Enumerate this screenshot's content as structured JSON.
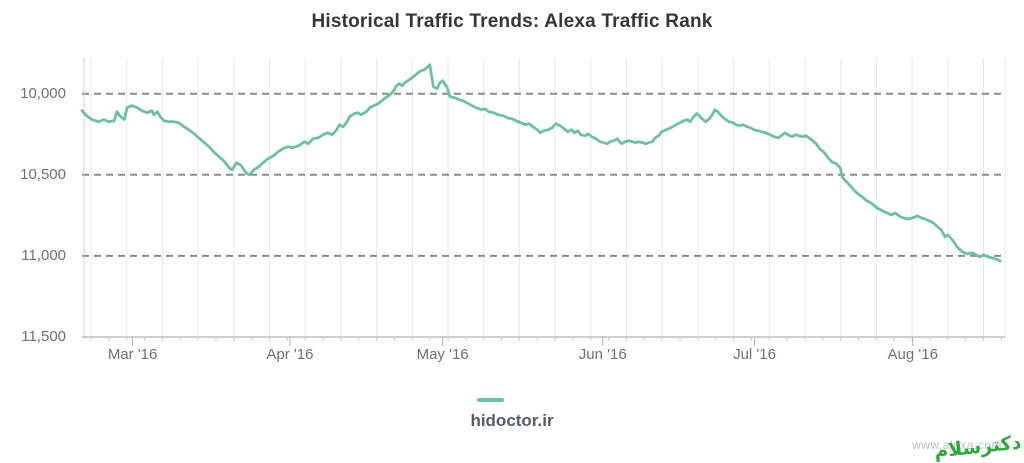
{
  "title": "Historical Traffic Trends: Alexa Traffic Rank",
  "legend": {
    "label": "hidoctor.ir"
  },
  "watermark": {
    "url_text": "www.alexa.com",
    "logo_text": "دکترسلام"
  },
  "colors": {
    "line": "#6fc19e",
    "dashed_grid": "#8c8c8c",
    "vertical_grid": "#e6e9ec",
    "axis": "#b9c0c6",
    "watermark_green": "#2ea83d"
  },
  "chart_data": {
    "type": "line",
    "title": "Historical Traffic Trends: Alexa Traffic Rank",
    "xlabel": "",
    "ylabel": "Alexa Traffic Rank",
    "grid": "weekly vertical solid, dashed horizontal at ticks",
    "legend_position": "bottom-center",
    "y_axis": {
      "inverted": true,
      "min": 9780,
      "max": 11500,
      "ticks": [
        10000,
        10500,
        11000,
        11500
      ],
      "grid_ticks": [
        10000,
        10500,
        11000
      ],
      "tick_format": "#,###"
    },
    "x_axis": {
      "labels": [
        "Mar '16",
        "Apr '16",
        "May '16",
        "Jun '16",
        "Jul '16",
        "Aug '16"
      ],
      "positions": [
        0.055,
        0.226,
        0.392,
        0.566,
        0.731,
        0.903
      ]
    },
    "series": [
      {
        "name": "hidoctor.ir",
        "color": "#6fc19e",
        "points": [
          [
            0.0,
            10105
          ],
          [
            0.005,
            10136
          ],
          [
            0.011,
            10160
          ],
          [
            0.018,
            10173
          ],
          [
            0.024,
            10160
          ],
          [
            0.029,
            10173
          ],
          [
            0.035,
            10167
          ],
          [
            0.038,
            10111
          ],
          [
            0.041,
            10136
          ],
          [
            0.046,
            10160
          ],
          [
            0.049,
            10086
          ],
          [
            0.054,
            10074
          ],
          [
            0.06,
            10086
          ],
          [
            0.065,
            10105
          ],
          [
            0.071,
            10117
          ],
          [
            0.076,
            10105
          ],
          [
            0.078,
            10130
          ],
          [
            0.082,
            10111
          ],
          [
            0.085,
            10142
          ],
          [
            0.089,
            10167
          ],
          [
            0.095,
            10173
          ],
          [
            0.1,
            10173
          ],
          [
            0.105,
            10179
          ],
          [
            0.111,
            10204
          ],
          [
            0.116,
            10222
          ],
          [
            0.122,
            10247
          ],
          [
            0.127,
            10272
          ],
          [
            0.133,
            10302
          ],
          [
            0.138,
            10327
          ],
          [
            0.143,
            10358
          ],
          [
            0.149,
            10389
          ],
          [
            0.154,
            10414
          ],
          [
            0.16,
            10457
          ],
          [
            0.163,
            10469
          ],
          [
            0.168,
            10426
          ],
          [
            0.173,
            10444
          ],
          [
            0.178,
            10488
          ],
          [
            0.182,
            10500
          ],
          [
            0.187,
            10469
          ],
          [
            0.192,
            10451
          ],
          [
            0.198,
            10420
          ],
          [
            0.202,
            10401
          ],
          [
            0.208,
            10383
          ],
          [
            0.213,
            10358
          ],
          [
            0.218,
            10340
          ],
          [
            0.224,
            10327
          ],
          [
            0.229,
            10333
          ],
          [
            0.235,
            10321
          ],
          [
            0.237,
            10315
          ],
          [
            0.242,
            10296
          ],
          [
            0.246,
            10309
          ],
          [
            0.251,
            10278
          ],
          [
            0.257,
            10272
          ],
          [
            0.262,
            10253
          ],
          [
            0.267,
            10241
          ],
          [
            0.272,
            10253
          ],
          [
            0.276,
            10228
          ],
          [
            0.28,
            10191
          ],
          [
            0.284,
            10204
          ],
          [
            0.288,
            10173
          ],
          [
            0.291,
            10142
          ],
          [
            0.296,
            10123
          ],
          [
            0.3,
            10117
          ],
          [
            0.303,
            10130
          ],
          [
            0.309,
            10111
          ],
          [
            0.313,
            10086
          ],
          [
            0.317,
            10074
          ],
          [
            0.322,
            10062
          ],
          [
            0.326,
            10043
          ],
          [
            0.33,
            10025
          ],
          [
            0.335,
            10006
          ],
          [
            0.339,
            9981
          ],
          [
            0.341,
            9957
          ],
          [
            0.345,
            9938
          ],
          [
            0.348,
            9951
          ],
          [
            0.351,
            9932
          ],
          [
            0.354,
            9920
          ],
          [
            0.359,
            9901
          ],
          [
            0.363,
            9883
          ],
          [
            0.367,
            9864
          ],
          [
            0.372,
            9852
          ],
          [
            0.375,
            9840
          ],
          [
            0.378,
            9821
          ],
          [
            0.382,
            9957
          ],
          [
            0.386,
            9969
          ],
          [
            0.389,
            9932
          ],
          [
            0.392,
            9920
          ],
          [
            0.397,
            9963
          ],
          [
            0.4,
            10019
          ],
          [
            0.405,
            10025
          ],
          [
            0.41,
            10037
          ],
          [
            0.414,
            10043
          ],
          [
            0.42,
            10062
          ],
          [
            0.424,
            10074
          ],
          [
            0.428,
            10086
          ],
          [
            0.434,
            10099
          ],
          [
            0.438,
            10093
          ],
          [
            0.442,
            10111
          ],
          [
            0.448,
            10117
          ],
          [
            0.452,
            10130
          ],
          [
            0.458,
            10136
          ],
          [
            0.462,
            10148
          ],
          [
            0.467,
            10154
          ],
          [
            0.472,
            10167
          ],
          [
            0.477,
            10179
          ],
          [
            0.482,
            10191
          ],
          [
            0.486,
            10185
          ],
          [
            0.49,
            10204
          ],
          [
            0.495,
            10222
          ],
          [
            0.498,
            10241
          ],
          [
            0.502,
            10228
          ],
          [
            0.507,
            10222
          ],
          [
            0.511,
            10210
          ],
          [
            0.515,
            10185
          ],
          [
            0.52,
            10198
          ],
          [
            0.524,
            10216
          ],
          [
            0.528,
            10235
          ],
          [
            0.532,
            10222
          ],
          [
            0.535,
            10241
          ],
          [
            0.539,
            10228
          ],
          [
            0.542,
            10253
          ],
          [
            0.547,
            10259
          ],
          [
            0.55,
            10247
          ],
          [
            0.554,
            10265
          ],
          [
            0.559,
            10278
          ],
          [
            0.563,
            10296
          ],
          [
            0.567,
            10302
          ],
          [
            0.571,
            10309
          ],
          [
            0.574,
            10296
          ],
          [
            0.578,
            10290
          ],
          [
            0.582,
            10278
          ],
          [
            0.584,
            10296
          ],
          [
            0.587,
            10309
          ],
          [
            0.59,
            10296
          ],
          [
            0.595,
            10290
          ],
          [
            0.598,
            10296
          ],
          [
            0.602,
            10302
          ],
          [
            0.605,
            10296
          ],
          [
            0.61,
            10302
          ],
          [
            0.613,
            10309
          ],
          [
            0.616,
            10302
          ],
          [
            0.62,
            10296
          ],
          [
            0.623,
            10272
          ],
          [
            0.627,
            10259
          ],
          [
            0.63,
            10235
          ],
          [
            0.635,
            10222
          ],
          [
            0.638,
            10216
          ],
          [
            0.642,
            10204
          ],
          [
            0.646,
            10191
          ],
          [
            0.65,
            10179
          ],
          [
            0.654,
            10167
          ],
          [
            0.658,
            10160
          ],
          [
            0.661,
            10173
          ],
          [
            0.665,
            10142
          ],
          [
            0.668,
            10123
          ],
          [
            0.672,
            10142
          ],
          [
            0.675,
            10160
          ],
          [
            0.678,
            10173
          ],
          [
            0.682,
            10154
          ],
          [
            0.685,
            10130
          ],
          [
            0.688,
            10099
          ],
          [
            0.692,
            10117
          ],
          [
            0.696,
            10142
          ],
          [
            0.7,
            10160
          ],
          [
            0.703,
            10173
          ],
          [
            0.708,
            10179
          ],
          [
            0.711,
            10191
          ],
          [
            0.715,
            10198
          ],
          [
            0.718,
            10191
          ],
          [
            0.723,
            10204
          ],
          [
            0.727,
            10210
          ],
          [
            0.73,
            10222
          ],
          [
            0.735,
            10228
          ],
          [
            0.739,
            10235
          ],
          [
            0.743,
            10241
          ],
          [
            0.748,
            10253
          ],
          [
            0.752,
            10265
          ],
          [
            0.757,
            10272
          ],
          [
            0.76,
            10259
          ],
          [
            0.764,
            10241
          ],
          [
            0.769,
            10259
          ],
          [
            0.772,
            10265
          ],
          [
            0.776,
            10253
          ],
          [
            0.779,
            10259
          ],
          [
            0.784,
            10265
          ],
          [
            0.787,
            10259
          ],
          [
            0.79,
            10272
          ],
          [
            0.793,
            10284
          ],
          [
            0.798,
            10309
          ],
          [
            0.802,
            10340
          ],
          [
            0.807,
            10364
          ],
          [
            0.811,
            10395
          ],
          [
            0.815,
            10420
          ],
          [
            0.82,
            10432
          ],
          [
            0.824,
            10457
          ],
          [
            0.827,
            10519
          ],
          [
            0.832,
            10549
          ],
          [
            0.837,
            10580
          ],
          [
            0.842,
            10611
          ],
          [
            0.848,
            10636
          ],
          [
            0.853,
            10660
          ],
          [
            0.859,
            10679
          ],
          [
            0.864,
            10704
          ],
          [
            0.87,
            10722
          ],
          [
            0.875,
            10735
          ],
          [
            0.88,
            10747
          ],
          [
            0.884,
            10735
          ],
          [
            0.888,
            10753
          ],
          [
            0.892,
            10765
          ],
          [
            0.898,
            10772
          ],
          [
            0.903,
            10765
          ],
          [
            0.908,
            10753
          ],
          [
            0.912,
            10765
          ],
          [
            0.916,
            10772
          ],
          [
            0.921,
            10784
          ],
          [
            0.925,
            10796
          ],
          [
            0.929,
            10815
          ],
          [
            0.934,
            10840
          ],
          [
            0.938,
            10883
          ],
          [
            0.941,
            10870
          ],
          [
            0.947,
            10907
          ],
          [
            0.951,
            10944
          ],
          [
            0.957,
            10975
          ],
          [
            0.962,
            10988
          ],
          [
            0.967,
            10981
          ],
          [
            0.972,
            10994
          ],
          [
            0.976,
            11006
          ],
          [
            0.98,
            10994
          ],
          [
            0.985,
            11006
          ],
          [
            0.989,
            11012
          ],
          [
            0.993,
            11019
          ],
          [
            0.998,
            11031
          ]
        ]
      }
    ]
  }
}
